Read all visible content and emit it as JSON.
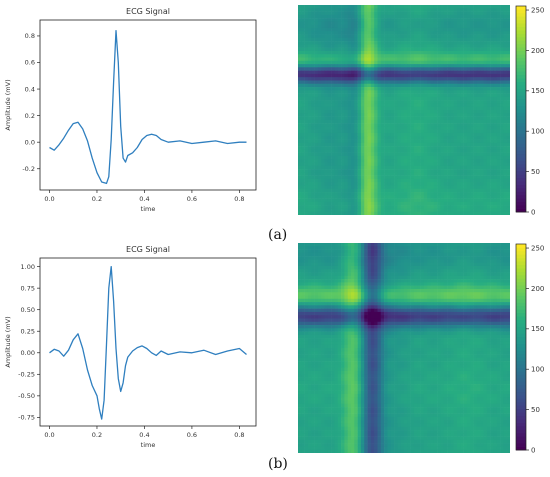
{
  "colors": {
    "line": "#2f7fbf",
    "axis": "#222222",
    "text": "#333333",
    "heatmap_colormap": "viridis"
  },
  "figure": {
    "label_a": "(a)",
    "label_b": "(b)"
  },
  "chart_data": [
    {
      "type": "line",
      "panel": "a",
      "title": "ECG Signal",
      "xlabel": "time",
      "ylabel": "Amplitude (mV)",
      "xlim": [
        -0.04,
        0.87
      ],
      "ylim": [
        -0.36,
        0.92
      ],
      "xticks": [
        0.0,
        0.2,
        0.4,
        0.6,
        0.8
      ],
      "xtick_labels": [
        "0.0",
        "0.2",
        "0.4",
        "0.6",
        "0.8"
      ],
      "yticks": [
        -0.2,
        0.0,
        0.2,
        0.4,
        0.6,
        0.8
      ],
      "ytick_labels": [
        "-0.2",
        "0.0",
        "0.2",
        "0.4",
        "0.6",
        "0.8"
      ],
      "series": [
        {
          "x": [
            0.0,
            0.02,
            0.04,
            0.06,
            0.08,
            0.1,
            0.12,
            0.14,
            0.16,
            0.18,
            0.2,
            0.22,
            0.24,
            0.25,
            0.26,
            0.27,
            0.28,
            0.29,
            0.3,
            0.31,
            0.32,
            0.33,
            0.35,
            0.37,
            0.39,
            0.41,
            0.43,
            0.45,
            0.47,
            0.5,
            0.55,
            0.6,
            0.65,
            0.7,
            0.75,
            0.8,
            0.83
          ],
          "y": [
            -0.04,
            -0.06,
            -0.02,
            0.03,
            0.09,
            0.14,
            0.15,
            0.1,
            0.01,
            -0.12,
            -0.23,
            -0.3,
            -0.31,
            -0.26,
            0.02,
            0.45,
            0.84,
            0.6,
            0.12,
            -0.12,
            -0.15,
            -0.1,
            -0.08,
            -0.04,
            0.02,
            0.05,
            0.06,
            0.05,
            0.02,
            0.0,
            0.01,
            -0.01,
            0.0,
            0.01,
            -0.01,
            0.0,
            0.0
          ]
        }
      ],
      "grid": false
    },
    {
      "type": "heatmap",
      "panel": "a",
      "colorbar_ticks": [
        0,
        50,
        100,
        150,
        200,
        250
      ],
      "colorbar_tick_labels": [
        "0",
        "50",
        "100",
        "150",
        "200",
        "250"
      ],
      "vmin": 0,
      "vmax": 255,
      "size": 64,
      "base_level": 150,
      "row_features": [
        {
          "center": 0.33,
          "width": 0.03,
          "delta": -115
        },
        {
          "center": 0.27,
          "width": 0.03,
          "delta": 35
        },
        {
          "center": 0.1,
          "width": 0.06,
          "delta": -15
        },
        {
          "center": 0.95,
          "width": 0.06,
          "delta": 8
        }
      ],
      "col_features": [
        {
          "center": 0.33,
          "width": 0.03,
          "delta": 55
        },
        {
          "center": 0.27,
          "width": 0.03,
          "delta": -20
        },
        {
          "center": 0.16,
          "width": 0.07,
          "delta": -12
        },
        {
          "center": 0.56,
          "width": 0.07,
          "delta": 10
        }
      ]
    },
    {
      "type": "line",
      "panel": "b",
      "title": "ECG Signal",
      "xlabel": "time",
      "ylabel": "Amplitude (mV)",
      "xlim": [
        -0.04,
        0.87
      ],
      "ylim": [
        -0.85,
        1.1
      ],
      "xticks": [
        0.0,
        0.2,
        0.4,
        0.6,
        0.8
      ],
      "xtick_labels": [
        "0.0",
        "0.2",
        "0.4",
        "0.6",
        "0.8"
      ],
      "yticks": [
        -0.75,
        -0.5,
        -0.25,
        0.0,
        0.25,
        0.5,
        0.75,
        1.0
      ],
      "ytick_labels": [
        "-0.75",
        "-0.50",
        "-0.25",
        "0.00",
        "0.25",
        "0.50",
        "0.75",
        "1.00"
      ],
      "series": [
        {
          "x": [
            0.0,
            0.02,
            0.04,
            0.06,
            0.08,
            0.1,
            0.12,
            0.14,
            0.16,
            0.18,
            0.2,
            0.21,
            0.22,
            0.23,
            0.24,
            0.25,
            0.26,
            0.27,
            0.28,
            0.29,
            0.3,
            0.31,
            0.32,
            0.33,
            0.35,
            0.37,
            0.39,
            0.41,
            0.43,
            0.45,
            0.47,
            0.5,
            0.55,
            0.6,
            0.65,
            0.7,
            0.75,
            0.8,
            0.83
          ],
          "y": [
            0.0,
            0.04,
            0.02,
            -0.04,
            0.03,
            0.15,
            0.22,
            0.05,
            -0.2,
            -0.38,
            -0.5,
            -0.65,
            -0.77,
            -0.55,
            0.1,
            0.75,
            1.0,
            0.6,
            0.05,
            -0.3,
            -0.45,
            -0.35,
            -0.15,
            -0.05,
            0.02,
            0.06,
            0.08,
            0.05,
            0.0,
            -0.03,
            0.02,
            -0.02,
            0.01,
            0.0,
            0.03,
            -0.02,
            0.02,
            0.05,
            -0.02
          ]
        }
      ],
      "grid": false
    },
    {
      "type": "heatmap",
      "panel": "b",
      "colorbar_ticks": [
        0,
        50,
        100,
        150,
        200,
        250
      ],
      "colorbar_tick_labels": [
        "0",
        "50",
        "100",
        "150",
        "200",
        "250"
      ],
      "vmin": 0,
      "vmax": 255,
      "size": 64,
      "base_level": 148,
      "row_features": [
        {
          "center": 0.35,
          "width": 0.035,
          "delta": -100
        },
        {
          "center": 0.25,
          "width": 0.035,
          "delta": 42
        },
        {
          "center": 0.05,
          "width": 0.06,
          "delta": -18
        },
        {
          "center": 0.7,
          "width": 0.08,
          "delta": 6
        }
      ],
      "col_features": [
        {
          "center": 0.35,
          "width": 0.035,
          "delta": -85
        },
        {
          "center": 0.26,
          "width": 0.035,
          "delta": 40
        },
        {
          "center": 0.45,
          "width": 0.05,
          "delta": -10
        },
        {
          "center": 0.8,
          "width": 0.07,
          "delta": 8
        }
      ]
    }
  ]
}
